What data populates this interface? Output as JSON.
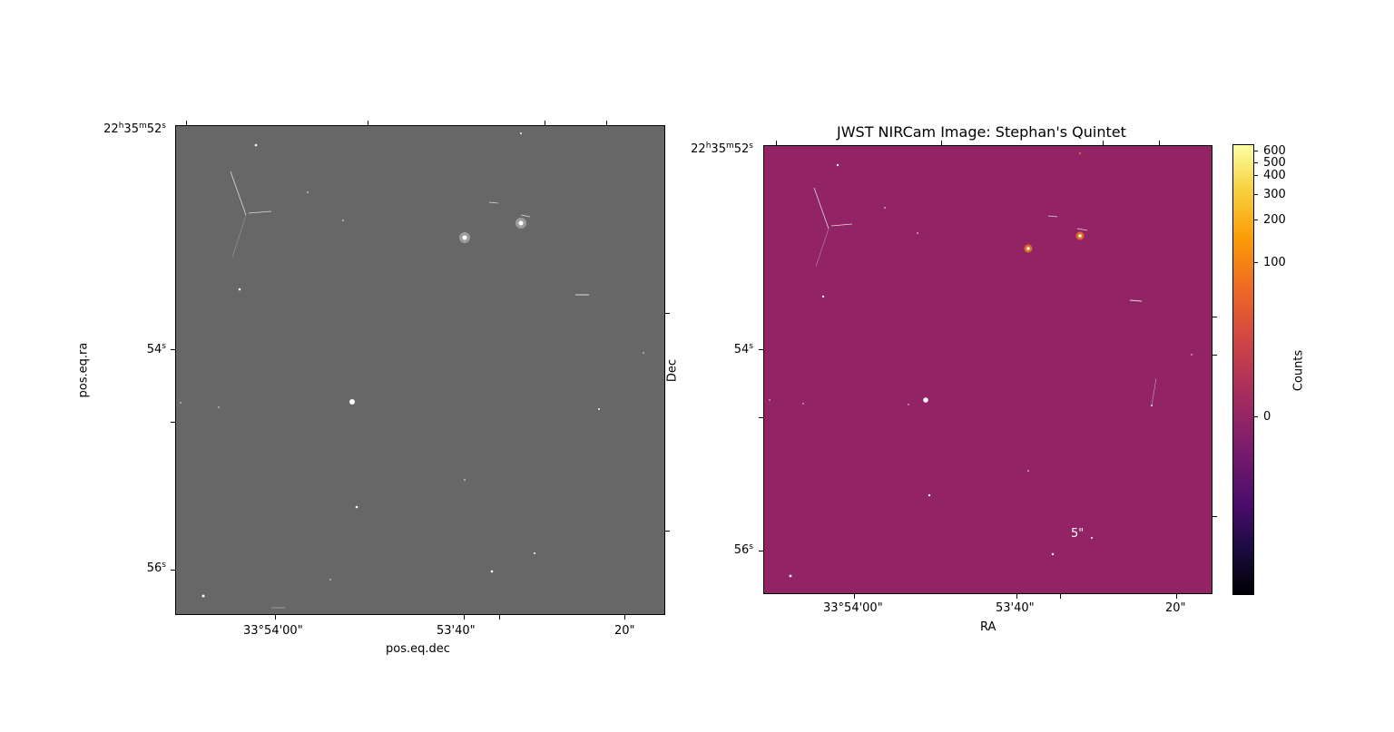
{
  "figure": {
    "title": "JWST NIRCam Image: Stephan's Quintet",
    "left_panel": {
      "y_axis_label": "pos.eq.ra",
      "x_axis_label": "pos.eq.dec",
      "y_ticks": [
        {
          "h": "22",
          "m": "35",
          "s": "52",
          "label": "22h35m52s"
        },
        {
          "s": "54",
          "label": "54s"
        },
        {
          "s": "56",
          "label": "56s"
        }
      ],
      "x_ticks": [
        "33°54'00\"",
        "53'40\"",
        "20\""
      ]
    },
    "right_panel": {
      "y_axis_label": "Dec",
      "x_axis_label": "RA",
      "y_ticks": [
        {
          "h": "22",
          "m": "35",
          "s": "52",
          "label": "22h35m52s"
        },
        {
          "s": "54",
          "label": "54s"
        },
        {
          "s": "56",
          "label": "56s"
        }
      ],
      "x_ticks": [
        "33°54'00\"",
        "53'40\"",
        "20\""
      ],
      "scale_bar_label": "5\""
    },
    "colorbar": {
      "label": "Counts",
      "ticks": [
        "600",
        "500",
        "400",
        "300",
        "200",
        "100",
        "0"
      ],
      "colormap": "inferno"
    },
    "colors": {
      "left_background": "#676767",
      "right_background": "#922466"
    }
  }
}
